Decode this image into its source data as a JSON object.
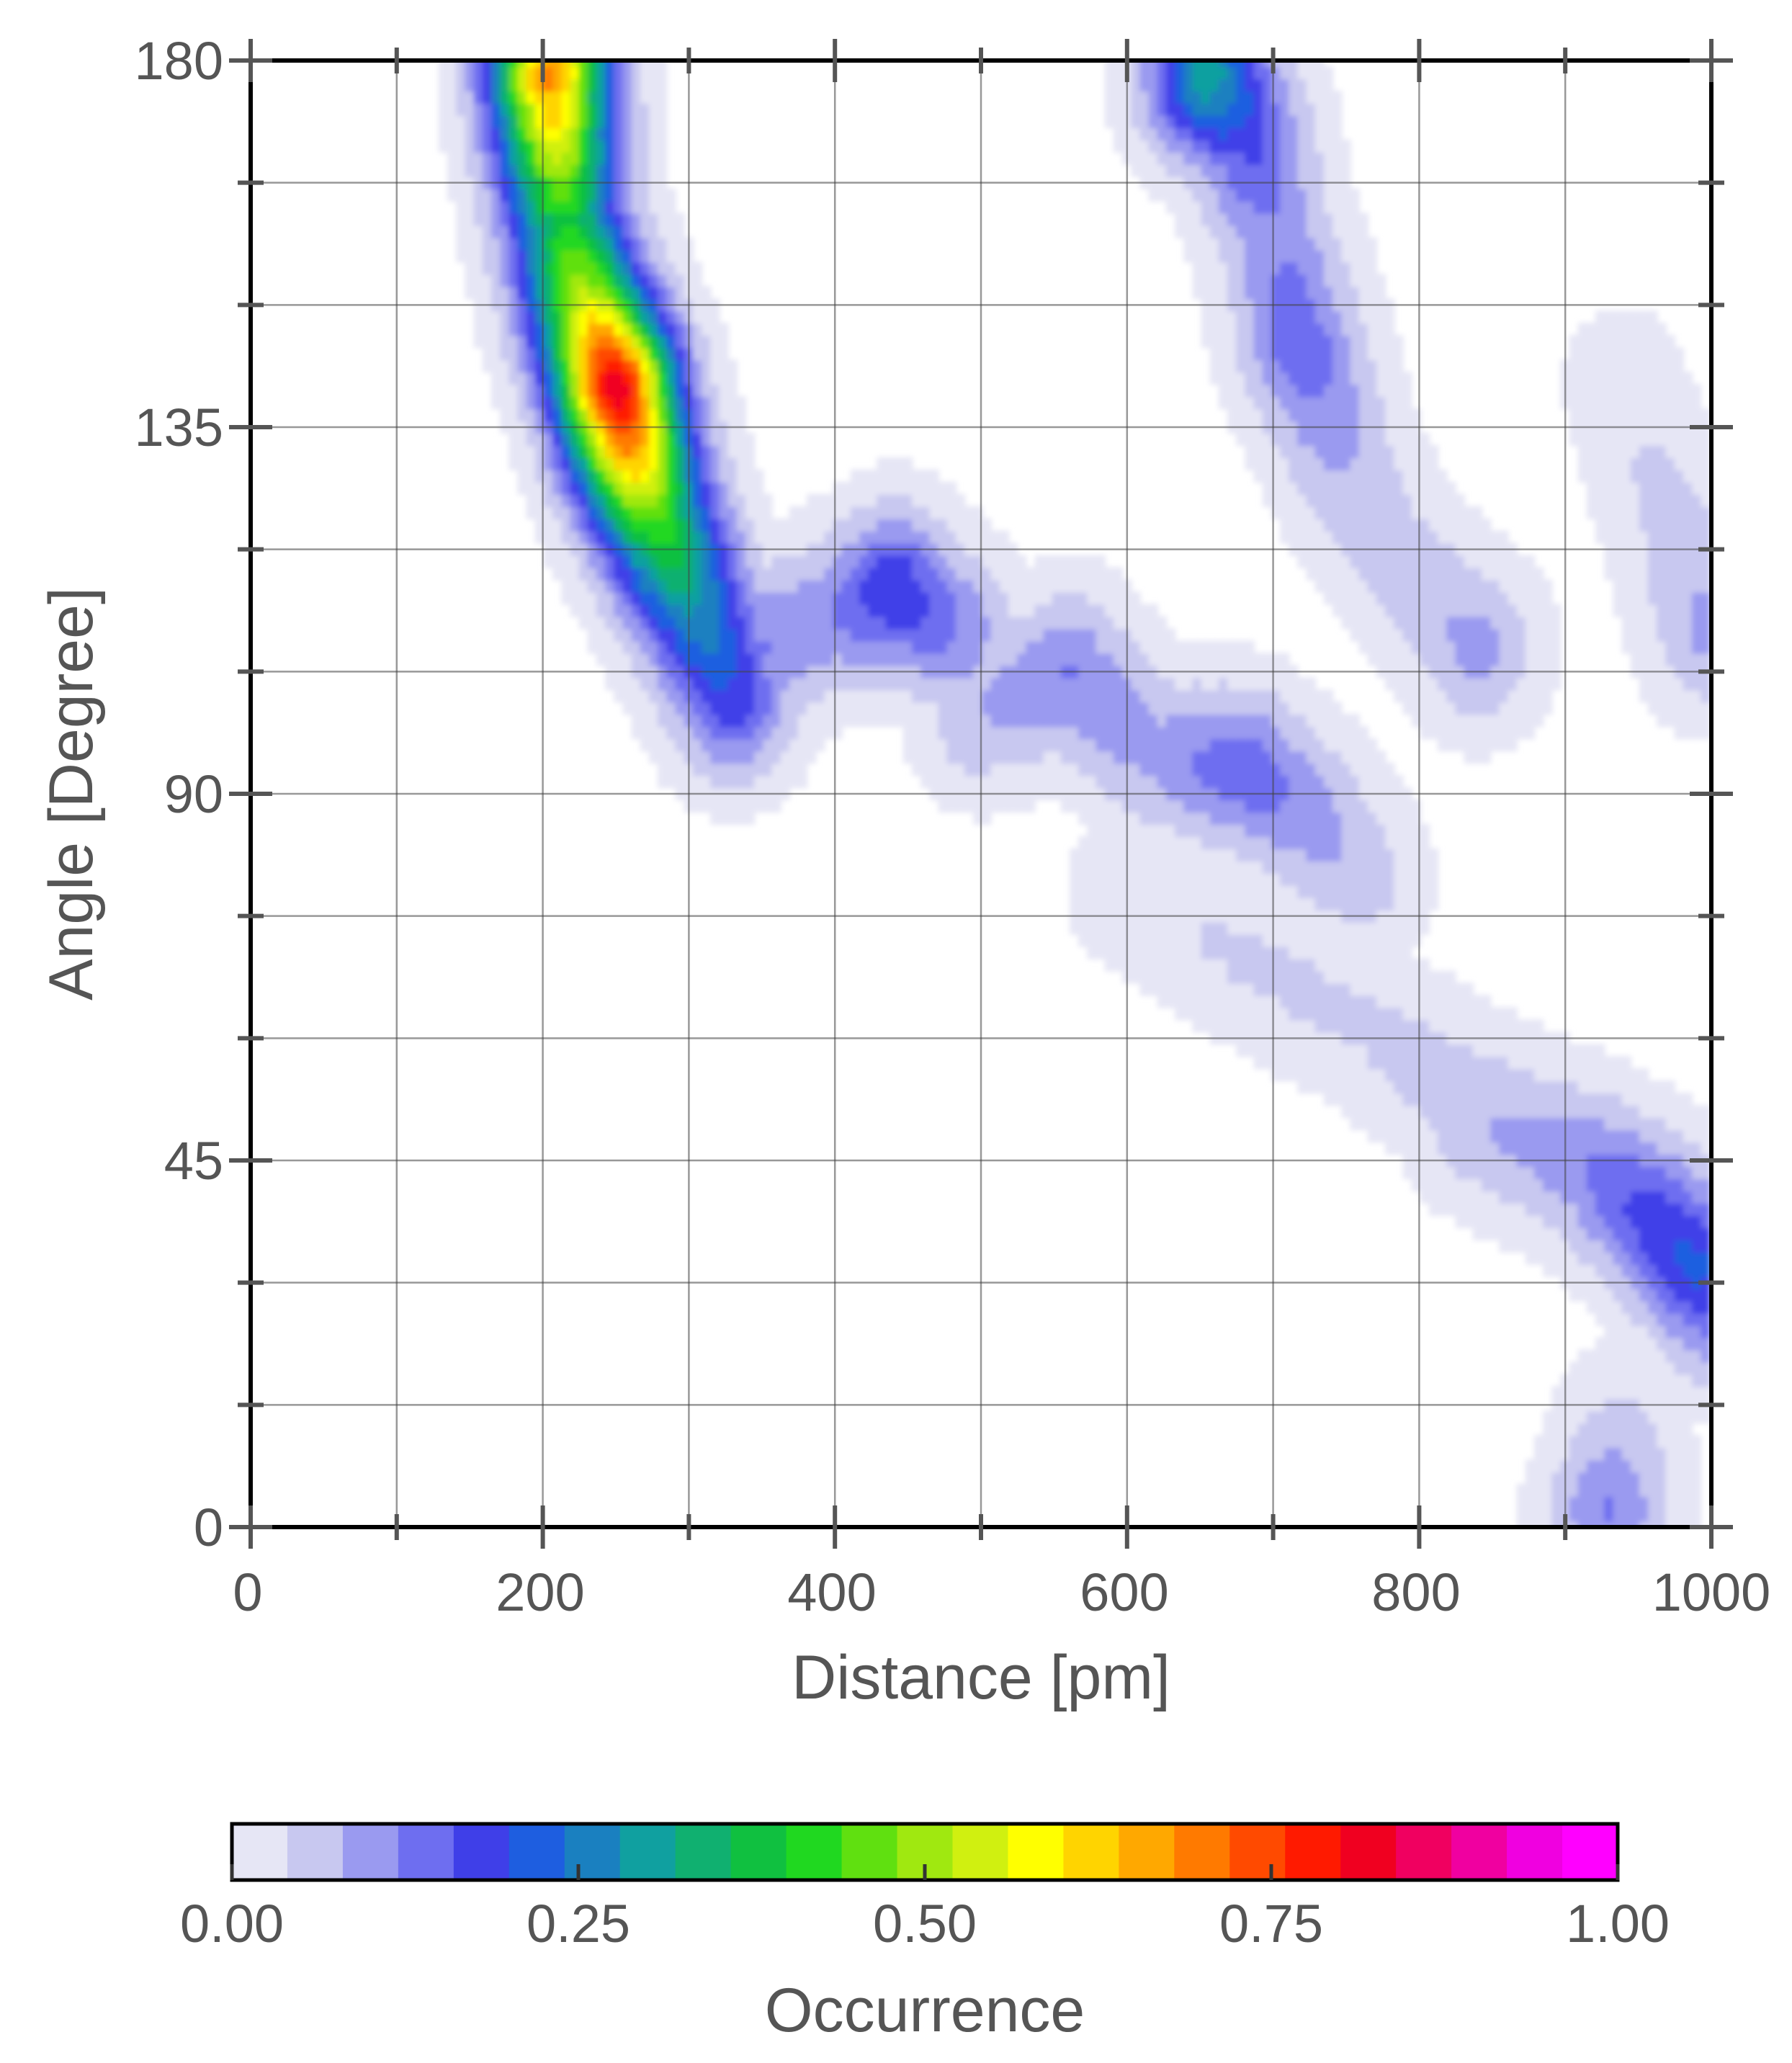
{
  "chart_data": {
    "type": "heatmap",
    "title": "",
    "xlabel": "Distance [pm]",
    "ylabel": "Angle [Degree]",
    "xlim": [
      0,
      1000
    ],
    "ylim": [
      0,
      180
    ],
    "xticks": [
      0,
      200,
      400,
      600,
      800,
      1000
    ],
    "xtick_labels": [
      "0",
      "200",
      "400",
      "600",
      "800",
      "1000"
    ],
    "yticks": [
      0,
      45,
      90,
      135,
      180
    ],
    "ytick_labels": [
      "0",
      "45",
      "90",
      "135",
      "180"
    ],
    "x_minor_step": 100,
    "y_minor_step": 15,
    "grid": true,
    "z_range": [
      0,
      1
    ],
    "colorbar": {
      "label": "Occurrence",
      "placement": "bottom",
      "ticks": [
        0,
        0.25,
        0.5,
        0.75,
        1.0
      ],
      "tick_labels": [
        "0.00",
        "0.25",
        "0.50",
        "0.75",
        "1.00"
      ],
      "colors": [
        "#e6e6f5",
        "#c8c8f0",
        "#9a9af0",
        "#6e6ef0",
        "#3f3fe8",
        "#1e5ee0",
        "#1a80c0",
        "#10a0a0",
        "#10b070",
        "#10c040",
        "#20d820",
        "#60e010",
        "#a0e810",
        "#d0f010",
        "#ffff00",
        "#ffd400",
        "#ffa800",
        "#ff7a00",
        "#ff4a00",
        "#ff1a00",
        "#f00020",
        "#f00060",
        "#f000a0",
        "#f000e0",
        "#ff00ff"
      ]
    },
    "series": [
      {
        "name": "",
        "x": [
          205,
          215,
          230,
          250,
          260,
          275,
          300,
          330
        ],
        "y": [
          178,
          160,
          150,
          140,
          133,
          125,
          115,
          102
        ],
        "values": [
          0.45,
          0.25,
          0.35,
          0.55,
          0.45,
          0.3,
          0.2,
          0.12
        ]
      },
      {
        "name": "",
        "x": [
          290,
          350,
          400,
          440,
          480
        ],
        "y": [
          112,
          108,
          112,
          115,
          110
        ],
        "values": [
          0.06,
          0.08,
          0.07,
          0.13,
          0.08
        ]
      },
      {
        "name": "",
        "x": [
          500,
          560,
          620,
          680,
          720,
          760
        ],
        "y": [
          100,
          105,
          95,
          93,
          88,
          80
        ],
        "values": [
          0.05,
          0.08,
          0.06,
          0.1,
          0.07,
          0.04
        ]
      },
      {
        "name": "",
        "x": [
          655,
          680,
          700,
          720,
          750,
          780,
          820,
          840
        ],
        "y": [
          178,
          172,
          160,
          145,
          130,
          120,
          112,
          108
        ],
        "values": [
          0.2,
          0.12,
          0.07,
          0.1,
          0.05,
          0.04,
          0.05,
          0.06
        ]
      },
      {
        "name": "",
        "x": [
          600,
          680,
          760,
          840,
          880
        ],
        "y": [
          78,
          70,
          62,
          52,
          48
        ],
        "values": [
          0.02,
          0.03,
          0.03,
          0.04,
          0.05
        ]
      },
      {
        "name": "",
        "x": [
          840,
          880,
          920,
          960,
          990,
          1000
        ],
        "y": [
          50,
          47,
          44,
          38,
          32,
          28
        ],
        "values": [
          0.05,
          0.06,
          0.08,
          0.12,
          0.14,
          0.1
        ]
      },
      {
        "name": "",
        "x": [
          940,
          980,
          1000
        ],
        "y": [
          140,
          120,
          110
        ],
        "values": [
          0.02,
          0.04,
          0.06
        ]
      },
      {
        "name": "",
        "x": [
          930,
          940
        ],
        "y": [
          2,
          12
        ],
        "values": [
          0.08,
          0.03
        ]
      }
    ]
  }
}
